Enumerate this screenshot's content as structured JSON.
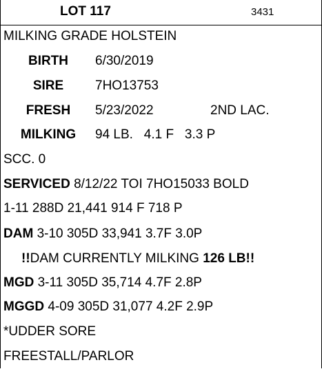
{
  "header": {
    "lot": "LOT 117",
    "number": "3431"
  },
  "title": "MILKING GRADE HOLSTEIN",
  "fields": [
    {
      "label": "BIRTH",
      "value": "6/30/2019"
    },
    {
      "label": "SIRE",
      "value": "7HO13753"
    },
    {
      "label": "FRESH",
      "value": "5/23/2022",
      "extra": "2ND LAC."
    },
    {
      "label": "MILKING",
      "value": "94 LB.   4.1 F   3.3 P"
    }
  ],
  "scc": "SCC. 0",
  "serviced": {
    "label": "SERVICED",
    "value": "8/12/22 TOI 7HO15033 BOLD"
  },
  "record": "1-11 288D 21,441 914 F 718 P",
  "dam": {
    "label": "DAM",
    "value": "3-10 305D 33,941 3.7F 3.0P"
  },
  "dam_note": {
    "mark": "!!",
    "text": "DAM CURRENTLY MILKING",
    "amount": "126 LB!!"
  },
  "mgd": {
    "label": "MGD",
    "value": "3-11 305D 35,714 4.7F 2.8P"
  },
  "mggd": {
    "label": "MGGD",
    "value": "4-09 305D 31,077 4.2F 2.9P"
  },
  "notes": [
    "*UDDER SORE",
    "FREESTALL/PARLOR"
  ]
}
